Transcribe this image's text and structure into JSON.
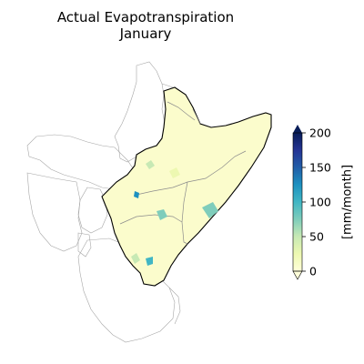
{
  "title": {
    "line1": "Actual Evapotranspiration",
    "line2": "January"
  },
  "colorbar": {
    "label": "[mm/month]",
    "colormap": "YlGnBu",
    "min": 0,
    "max": 200,
    "extend": "both",
    "ticks": [
      {
        "value": 0,
        "label": "0"
      },
      {
        "value": 50,
        "label": "50"
      },
      {
        "value": 100,
        "label": "100"
      },
      {
        "value": 150,
        "label": "150"
      },
      {
        "value": 200,
        "label": "200"
      }
    ],
    "stops": [
      "#ffffd9",
      "#edf8b1",
      "#c7e9b4",
      "#7fcdbb",
      "#41b6c4",
      "#1d91c0",
      "#225ea8",
      "#253494",
      "#081d58"
    ]
  },
  "map": {
    "region_fill": "#fbfccc",
    "region_outline": "#000000",
    "internal_border_color": "#8c8c8c",
    "context_border_color": "#a6a6a6"
  }
}
